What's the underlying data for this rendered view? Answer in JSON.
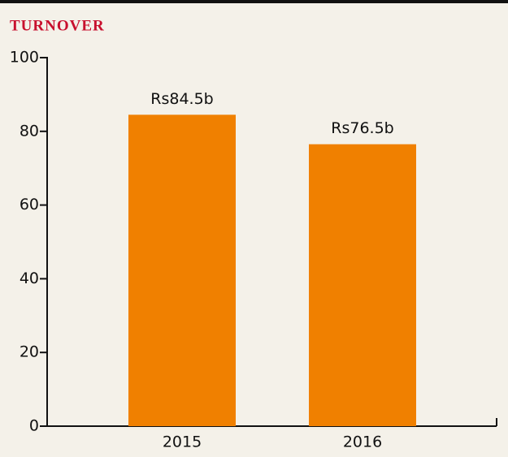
{
  "chart_data": {
    "type": "bar",
    "title": "TURNOVER",
    "categories": [
      "2015",
      "2016"
    ],
    "values": [
      84.5,
      76.5
    ],
    "value_labels": [
      "Rs84.5b",
      "Rs76.5b"
    ],
    "color": "#f08000",
    "ylim": [
      0,
      100
    ],
    "yticks": [
      0,
      20,
      40,
      60,
      80,
      100
    ]
  }
}
